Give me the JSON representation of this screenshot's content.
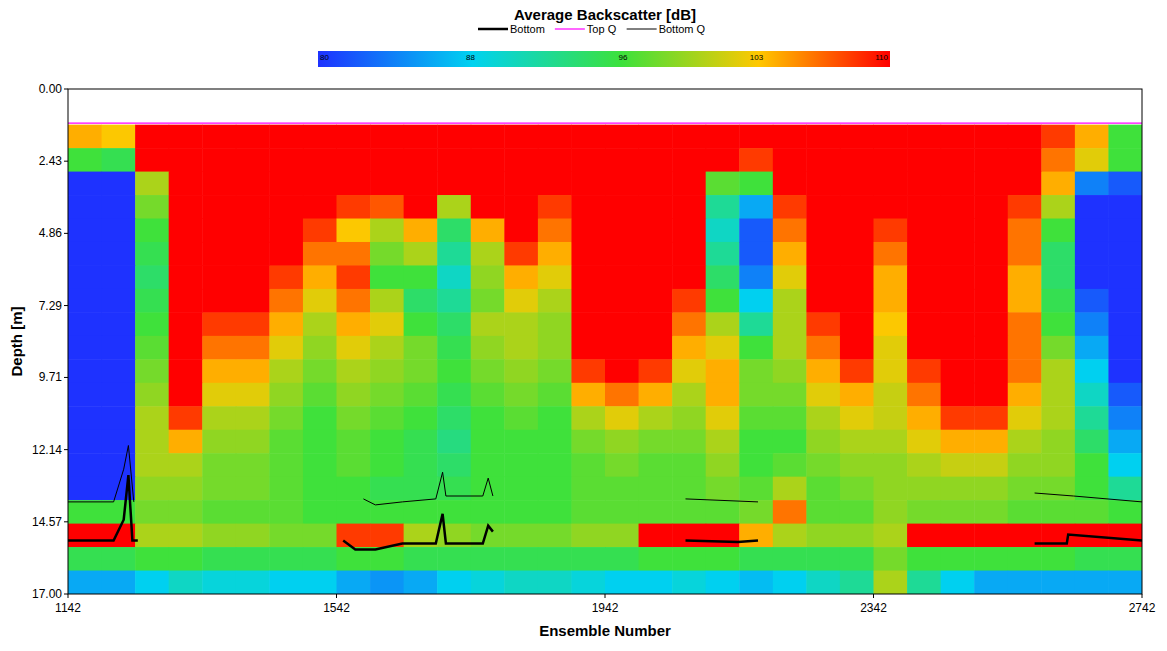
{
  "chart_data": {
    "type": "heatmap",
    "title": "Average Backscatter [dB]",
    "x_label": "Ensemble Number",
    "y_label": "Depth [m]",
    "xlim": [
      1142,
      2742
    ],
    "ylim": [
      0,
      17
    ],
    "xticks": [
      1142,
      1542,
      1942,
      2342,
      2742
    ],
    "yticks": [
      {
        "value": 0,
        "label": "0.00"
      },
      {
        "value": 2.43,
        "label": "2.43"
      },
      {
        "value": 4.86,
        "label": "4.86"
      },
      {
        "value": 7.29,
        "label": "7.29"
      },
      {
        "value": 9.71,
        "label": "9.71"
      },
      {
        "value": 12.14,
        "label": "12.14"
      },
      {
        "value": 14.57,
        "label": "14.57"
      },
      {
        "value": 17,
        "label": "17.00"
      }
    ],
    "legend": "top",
    "colorbar": {
      "range": [
        80,
        110
      ],
      "ticks": [
        80,
        88,
        96,
        103,
        110
      ]
    },
    "x_edges": [
      1142,
      1192,
      1242,
      1292,
      1342,
      1392,
      1442,
      1492,
      1542,
      1592,
      1642,
      1692,
      1742,
      1792,
      1842,
      1892,
      1942,
      1992,
      2042,
      2092,
      2142,
      2192,
      2242,
      2292,
      2342,
      2392,
      2442,
      2492,
      2542,
      2592,
      2642,
      2692,
      2742
    ],
    "y_edges": [
      1.2,
      1.99,
      2.78,
      3.57,
      4.36,
      5.15,
      5.94,
      6.73,
      7.52,
      8.31,
      9.1,
      9.89,
      10.68,
      11.47,
      12.26,
      13.05,
      13.84,
      14.63,
      15.42,
      16.21,
      17.0
    ],
    "values": [
      [
        104,
        103,
        110,
        110,
        110,
        110,
        110,
        110,
        110,
        110,
        110,
        110,
        110,
        110,
        110,
        110,
        110,
        110,
        110,
        110,
        110,
        110,
        110,
        110,
        110,
        110,
        110,
        110,
        110,
        108,
        104,
        96
      ],
      [
        96,
        95,
        110,
        110,
        110,
        110,
        110,
        110,
        110,
        110,
        110,
        110,
        110,
        110,
        110,
        110,
        110,
        110,
        110,
        110,
        108,
        110,
        110,
        110,
        110,
        110,
        110,
        110,
        110,
        106,
        102,
        96
      ],
      [
        80,
        80,
        100,
        110,
        110,
        110,
        110,
        110,
        110,
        110,
        110,
        110,
        110,
        110,
        110,
        110,
        110,
        110,
        110,
        97,
        96,
        110,
        110,
        110,
        110,
        110,
        110,
        110,
        110,
        104,
        84,
        82
      ],
      [
        80,
        80,
        98,
        110,
        110,
        110,
        110,
        110,
        108,
        107,
        110,
        100,
        110,
        110,
        108,
        110,
        110,
        110,
        110,
        92,
        86,
        108,
        110,
        110,
        110,
        110,
        110,
        110,
        108,
        100,
        80,
        80
      ],
      [
        80,
        80,
        96,
        110,
        110,
        110,
        110,
        108,
        103,
        100,
        104,
        94,
        104,
        110,
        106,
        110,
        110,
        110,
        110,
        90,
        82,
        106,
        110,
        110,
        108,
        110,
        110,
        110,
        106,
        96,
        80,
        80
      ],
      [
        80,
        80,
        95,
        110,
        110,
        110,
        110,
        106,
        106,
        98,
        100,
        92,
        100,
        108,
        104,
        110,
        110,
        110,
        110,
        92,
        82,
        104,
        110,
        110,
        106,
        110,
        110,
        110,
        106,
        94,
        80,
        80
      ],
      [
        80,
        80,
        94,
        110,
        110,
        110,
        108,
        104,
        108,
        96,
        96,
        90,
        99,
        104,
        102,
        110,
        110,
        110,
        110,
        94,
        84,
        102,
        110,
        110,
        104,
        110,
        110,
        110,
        104,
        94,
        80,
        80
      ],
      [
        80,
        80,
        95,
        110,
        110,
        110,
        106,
        102,
        106,
        100,
        94,
        92,
        98,
        102,
        100,
        110,
        110,
        110,
        108,
        96,
        88,
        100,
        110,
        110,
        104,
        110,
        110,
        110,
        104,
        95,
        82,
        80
      ],
      [
        80,
        80,
        96,
        110,
        108,
        108,
        104,
        100,
        104,
        102,
        96,
        94,
        100,
        100,
        99,
        110,
        110,
        110,
        106,
        100,
        92,
        100,
        108,
        110,
        103,
        110,
        110,
        110,
        106,
        96,
        84,
        80
      ],
      [
        80,
        80,
        97,
        110,
        106,
        106,
        102,
        99,
        102,
        100,
        98,
        95,
        99,
        100,
        99,
        110,
        110,
        110,
        104,
        102,
        96,
        100,
        106,
        110,
        102,
        110,
        110,
        110,
        106,
        98,
        86,
        80
      ],
      [
        80,
        80,
        98,
        110,
        104,
        104,
        100,
        98,
        100,
        99,
        98,
        96,
        98,
        99,
        98,
        108,
        110,
        108,
        102,
        104,
        98,
        99,
        104,
        108,
        102,
        108,
        110,
        110,
        106,
        100,
        88,
        80
      ],
      [
        80,
        80,
        99,
        110,
        102,
        102,
        99,
        97,
        99,
        98,
        97,
        95,
        97,
        98,
        97,
        104,
        106,
        104,
        100,
        104,
        98,
        98,
        102,
        104,
        101,
        106,
        110,
        110,
        104,
        100,
        90,
        82
      ],
      [
        80,
        80,
        100,
        108,
        100,
        100,
        98,
        96,
        98,
        97,
        96,
        94,
        96,
        97,
        96,
        100,
        102,
        100,
        99,
        102,
        97,
        97,
        100,
        102,
        101,
        104,
        108,
        108,
        102,
        100,
        92,
        84
      ],
      [
        80,
        80,
        100,
        104,
        99,
        99,
        97,
        96,
        97,
        96,
        95,
        93,
        96,
        96,
        96,
        98,
        99,
        98,
        98,
        100,
        96,
        96,
        99,
        100,
        100,
        102,
        104,
        104,
        100,
        99,
        94,
        86
      ],
      [
        80,
        80,
        100,
        100,
        98,
        98,
        97,
        96,
        97,
        96,
        95,
        94,
        96,
        96,
        96,
        97,
        98,
        97,
        97,
        99,
        96,
        97,
        98,
        99,
        99,
        100,
        101,
        101,
        99,
        99,
        96,
        88
      ],
      [
        80,
        80,
        99,
        99,
        98,
        98,
        97,
        96,
        96,
        95,
        95,
        95,
        96,
        96,
        96,
        97,
        97,
        97,
        97,
        98,
        97,
        100,
        97,
        98,
        99,
        99,
        99,
        99,
        98,
        98,
        96,
        92
      ],
      [
        96,
        96,
        98,
        98,
        97,
        97,
        97,
        96,
        96,
        96,
        96,
        96,
        96,
        96,
        96,
        97,
        97,
        97,
        97,
        97,
        98,
        106,
        97,
        97,
        99,
        98,
        98,
        98,
        97,
        97,
        97,
        96
      ],
      [
        110,
        110,
        100,
        100,
        99,
        99,
        98,
        98,
        108,
        108,
        100,
        99,
        98,
        98,
        98,
        99,
        99,
        110,
        110,
        110,
        104,
        100,
        99,
        99,
        100,
        110,
        110,
        110,
        110,
        110,
        110,
        110
      ],
      [
        95,
        95,
        96,
        96,
        95,
        95,
        95,
        95,
        96,
        96,
        95,
        95,
        95,
        95,
        95,
        95,
        95,
        96,
        96,
        96,
        95,
        95,
        95,
        95,
        98,
        96,
        96,
        96,
        96,
        96,
        95,
        95
      ],
      [
        86,
        86,
        88,
        90,
        89,
        89,
        88,
        88,
        86,
        85,
        86,
        88,
        89,
        90,
        90,
        89,
        88,
        88,
        89,
        88,
        87,
        88,
        90,
        92,
        100,
        92,
        88,
        86,
        86,
        86,
        86,
        86
      ]
    ],
    "series": [
      {
        "name": "Bottom",
        "color": "#000000",
        "type": "line",
        "line_style": "thick",
        "x": [
          1142,
          1210,
          1225,
          1232,
          1238,
          1246,
          1400,
          1552,
          1570,
          1600,
          1640,
          1690,
          1700,
          1705,
          1760,
          1768,
          1775,
          1900,
          2062,
          2140,
          2170,
          2400,
          2582,
          2630,
          2632,
          2742
        ],
        "values": [
          15.2,
          15.2,
          14.5,
          13.0,
          15.2,
          15.2,
          null,
          15.2,
          15.5,
          15.5,
          15.3,
          15.3,
          14.3,
          15.3,
          15.3,
          14.7,
          14.9,
          null,
          15.2,
          15.25,
          15.2,
          null,
          15.3,
          15.3,
          15.0,
          15.2
        ]
      },
      {
        "name": "Top Q",
        "color": "#ff00ff",
        "type": "line",
        "line_style": "solid",
        "x": [
          1142,
          2742
        ],
        "values": [
          1.15,
          1.15
        ]
      },
      {
        "name": "Bottom Q",
        "color": "#000000",
        "type": "line",
        "line_style": "thin",
        "x": [
          1142,
          1210,
          1225,
          1232,
          1240,
          1400,
          1582,
          1600,
          1640,
          1690,
          1700,
          1705,
          1760,
          1768,
          1775,
          1900,
          2062,
          2170,
          2400,
          2582,
          2640,
          2742
        ],
        "values": [
          13.9,
          13.9,
          12.8,
          12.0,
          13.9,
          null,
          13.8,
          14.0,
          13.9,
          13.8,
          12.9,
          13.7,
          13.7,
          13.1,
          13.7,
          null,
          13.8,
          13.9,
          null,
          13.6,
          13.7,
          13.9
        ]
      }
    ]
  }
}
